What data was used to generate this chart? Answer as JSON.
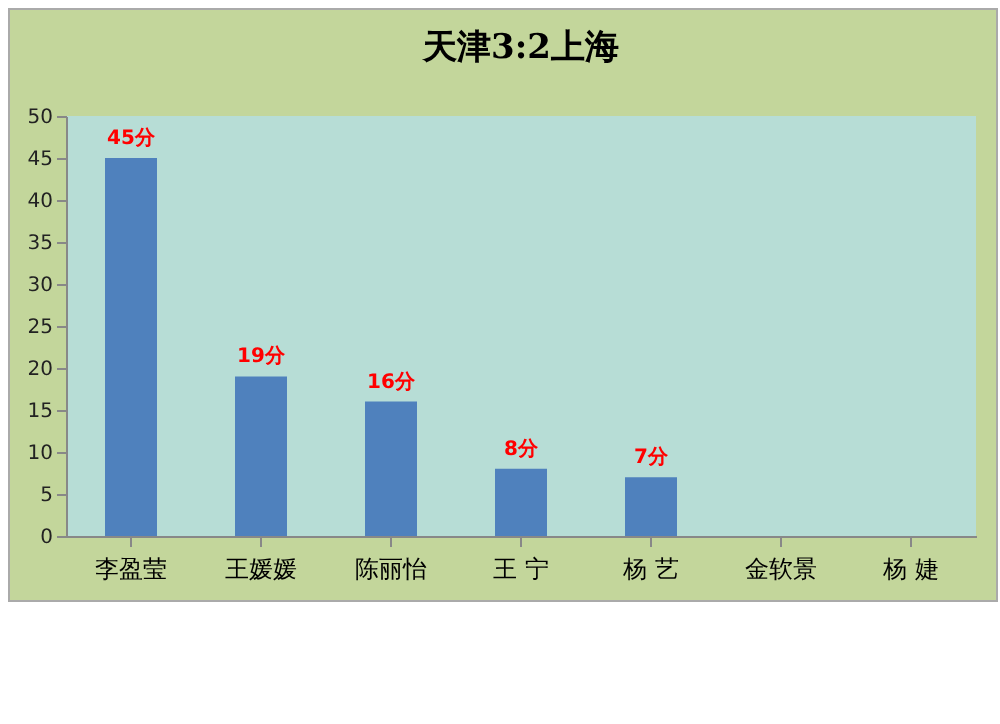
{
  "chart_data": {
    "type": "bar",
    "title": "天津3:2上海",
    "categories": [
      "李盈莹",
      "王媛媛",
      "陈丽怡",
      "王  宁",
      "杨  艺",
      "金软景",
      "杨  婕"
    ],
    "values": [
      45,
      19,
      16,
      8,
      7,
      null,
      null
    ],
    "colors": [
      "#4f81bd",
      "#4f81bd",
      "#4f81bd",
      "#4f81bd",
      "#4f81bd",
      "#9bbb59",
      "#9bbb59"
    ],
    "value_labels": [
      "45分",
      "19分",
      "16分",
      "8分",
      "7分",
      null,
      null
    ],
    "ylim": [
      0,
      50
    ],
    "yticks": [
      0,
      5,
      10,
      15,
      20,
      25,
      30,
      35,
      40,
      45,
      50
    ],
    "grid": false
  }
}
